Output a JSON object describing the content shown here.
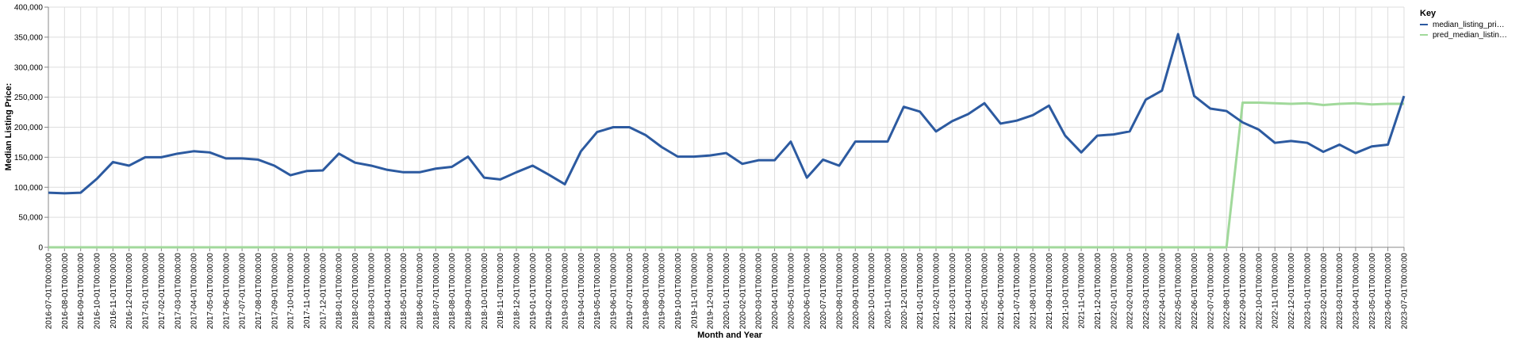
{
  "chart_data": {
    "type": "line",
    "xlabel": "Month and Year",
    "ylabel": "Median Listing Price:",
    "ylim": [
      0,
      400000
    ],
    "yticks": [
      "0",
      "50,000",
      "100,000",
      "150,000",
      "200,000",
      "250,000",
      "300,000",
      "350,000",
      "400,000"
    ],
    "grid": true,
    "legend": {
      "title": "Key",
      "placement": "top-right",
      "entries": [
        "median_listing_pri…",
        "pred_median_listin…"
      ]
    },
    "categories": [
      "2016-07-01T00:00:00",
      "2016-08-01T00:00:00",
      "2016-09-01T00:00:00",
      "2016-10-01T00:00:00",
      "2016-11-01T00:00:00",
      "2016-12-01T00:00:00",
      "2017-01-01T00:00:00",
      "2017-02-01T00:00:00",
      "2017-03-01T00:00:00",
      "2017-04-01T00:00:00",
      "2017-05-01T00:00:00",
      "2017-06-01T00:00:00",
      "2017-07-01T00:00:00",
      "2017-08-01T00:00:00",
      "2017-09-01T00:00:00",
      "2017-10-01T00:00:00",
      "2017-11-01T00:00:00",
      "2017-12-01T00:00:00",
      "2018-01-01T00:00:00",
      "2018-02-01T00:00:00",
      "2018-03-01T00:00:00",
      "2018-04-01T00:00:00",
      "2018-05-01T00:00:00",
      "2018-06-01T00:00:00",
      "2018-07-01T00:00:00",
      "2018-08-01T00:00:00",
      "2018-09-01T00:00:00",
      "2018-10-01T00:00:00",
      "2018-11-01T00:00:00",
      "2018-12-01T00:00:00",
      "2019-01-01T00:00:00",
      "2019-02-01T00:00:00",
      "2019-03-01T00:00:00",
      "2019-04-01T00:00:00",
      "2019-05-01T00:00:00",
      "2019-06-01T00:00:00",
      "2019-07-01T00:00:00",
      "2019-08-01T00:00:00",
      "2019-09-01T00:00:00",
      "2019-10-01T00:00:00",
      "2019-11-01T00:00:00",
      "2019-12-01T00:00:00",
      "2020-01-01T00:00:00",
      "2020-02-01T00:00:00",
      "2020-03-01T00:00:00",
      "2020-04-01T00:00:00",
      "2020-05-01T00:00:00",
      "2020-06-01T00:00:00",
      "2020-07-01T00:00:00",
      "2020-08-01T00:00:00",
      "2020-09-01T00:00:00",
      "2020-10-01T00:00:00",
      "2020-11-01T00:00:00",
      "2020-12-01T00:00:00",
      "2021-01-01T00:00:00",
      "2021-02-01T00:00:00",
      "2021-03-01T00:00:00",
      "2021-04-01T00:00:00",
      "2021-05-01T00:00:00",
      "2021-06-01T00:00:00",
      "2021-07-01T00:00:00",
      "2021-08-01T00:00:00",
      "2021-09-01T00:00:00",
      "2021-10-01T00:00:00",
      "2021-11-01T00:00:00",
      "2021-12-01T00:00:00",
      "2022-01-01T00:00:00",
      "2022-02-01T00:00:00",
      "2022-03-01T00:00:00",
      "2022-04-01T00:00:00",
      "2022-05-01T00:00:00",
      "2022-06-01T00:00:00",
      "2022-07-01T00:00:00",
      "2022-08-01T00:00:00",
      "2022-09-01T00:00:00",
      "2022-10-01T00:00:00",
      "2022-11-01T00:00:00",
      "2022-12-01T00:00:00",
      "2023-01-01T00:00:00",
      "2023-02-01T00:00:00",
      "2023-03-01T00:00:00",
      "2023-04-01T00:00:00",
      "2023-05-01T00:00:00",
      "2023-06-01T00:00:00",
      "2023-07-01T00:00:00"
    ],
    "series": [
      {
        "name": "median_listing_pri…",
        "color": "#2c5aa0",
        "values": [
          91000,
          90000,
          91000,
          114000,
          142000,
          136000,
          150000,
          150000,
          156000,
          160000,
          158000,
          148000,
          148000,
          146000,
          136000,
          120000,
          127000,
          128000,
          156000,
          141000,
          136000,
          129000,
          125000,
          125000,
          131000,
          134000,
          151000,
          116000,
          113000,
          125000,
          136000,
          121000,
          105000,
          160000,
          192000,
          200000,
          200000,
          187000,
          167000,
          151000,
          151000,
          153000,
          157000,
          139000,
          145000,
          145000,
          176000,
          116000,
          146000,
          136000,
          176000,
          176000,
          176000,
          234000,
          226000,
          193000,
          210000,
          222000,
          240000,
          206000,
          211000,
          220000,
          236000,
          186000,
          158000,
          186000,
          188000,
          193000,
          246000,
          261000,
          355000,
          252000,
          231000,
          227000,
          208000,
          196000,
          174000,
          177000,
          174000,
          159000,
          171000,
          157000,
          168000,
          171000,
          252000
        ]
      },
      {
        "name": "pred_median_listin…",
        "color": "#a1d99b",
        "values": [
          0,
          0,
          0,
          0,
          0,
          0,
          0,
          0,
          0,
          0,
          0,
          0,
          0,
          0,
          0,
          0,
          0,
          0,
          0,
          0,
          0,
          0,
          0,
          0,
          0,
          0,
          0,
          0,
          0,
          0,
          0,
          0,
          0,
          0,
          0,
          0,
          0,
          0,
          0,
          0,
          0,
          0,
          0,
          0,
          0,
          0,
          0,
          0,
          0,
          0,
          0,
          0,
          0,
          0,
          0,
          0,
          0,
          0,
          0,
          0,
          0,
          0,
          0,
          0,
          0,
          0,
          0,
          0,
          0,
          0,
          0,
          0,
          0,
          0,
          241000,
          241000,
          240000,
          239000,
          240000,
          237000,
          239000,
          240000,
          238000,
          239000,
          239000
        ]
      }
    ]
  }
}
